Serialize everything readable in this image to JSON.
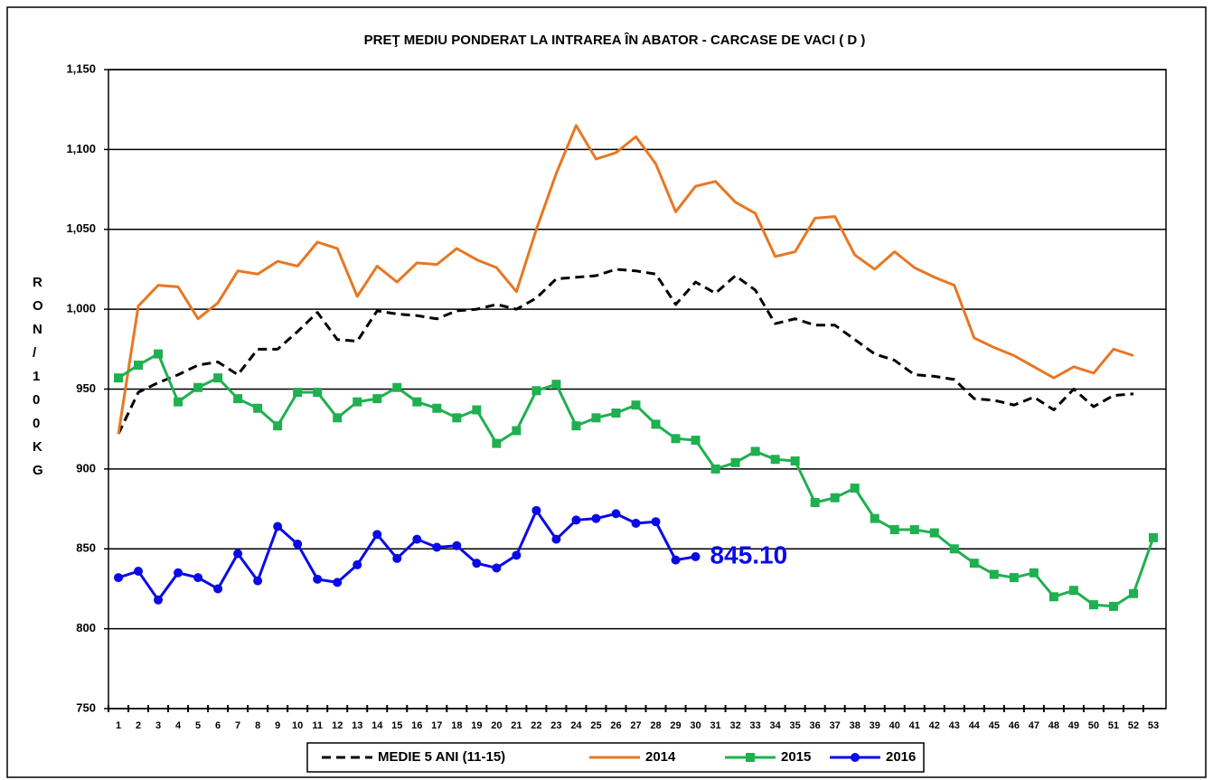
{
  "chart_data": {
    "type": "line",
    "title": "PREŢ MEDIU PONDERAT LA INTRAREA ÎN ABATOR - CARCASE DE VACI ( D )",
    "y_label": "RON / 100 KG",
    "categories": [
      1,
      2,
      3,
      4,
      5,
      6,
      7,
      8,
      9,
      10,
      11,
      12,
      13,
      14,
      15,
      16,
      17,
      18,
      19,
      20,
      21,
      22,
      23,
      24,
      25,
      26,
      27,
      28,
      29,
      30,
      31,
      32,
      33,
      34,
      35,
      36,
      37,
      38,
      39,
      40,
      41,
      42,
      43,
      44,
      45,
      46,
      47,
      48,
      49,
      50,
      51,
      52,
      53
    ],
    "ylim": [
      750,
      1150
    ],
    "yticks": [
      750,
      800,
      850,
      900,
      950,
      {
        "value": 1000,
        "label": "1,000"
      },
      {
        "value": 1050,
        "label": "1,050"
      },
      {
        "value": 1100,
        "label": "1,100"
      },
      {
        "value": 1150,
        "label": "1,150"
      }
    ],
    "grid": true,
    "legend": "bottom",
    "series": [
      {
        "name": "MEDIE 5 ANI (11-15)",
        "color": "#000000",
        "dash": true,
        "marker": "none",
        "values": [
          922,
          948,
          954,
          959,
          965,
          967,
          959,
          975,
          975,
          986,
          998,
          981,
          980,
          999,
          997,
          996,
          994,
          999,
          1000,
          1003,
          1000,
          1007,
          1019,
          1020,
          1021,
          1025,
          1024,
          1022,
          1003,
          1017,
          1010,
          1021,
          1012,
          991,
          994,
          990,
          990,
          981,
          972,
          968,
          959,
          958,
          956,
          944,
          943,
          940,
          945,
          937,
          950,
          939,
          946,
          947,
          null
        ]
      },
      {
        "name": "2014",
        "color": "#e87722",
        "dash": false,
        "marker": "none",
        "values": [
          922,
          1002,
          1015,
          1014,
          994,
          1004,
          1024,
          1022,
          1030,
          1027,
          1042,
          1038,
          1008,
          1027,
          1017,
          1029,
          1028,
          1038,
          1031,
          1026,
          1011,
          1050,
          1085,
          1115,
          1094,
          1098,
          1108,
          1091,
          1061,
          1077,
          1080,
          1067,
          1060,
          1033,
          1036,
          1057,
          1058,
          1034,
          1025,
          1036,
          1026,
          1020,
          1015,
          982,
          976,
          971,
          964,
          957,
          964,
          960,
          975,
          971,
          null
        ]
      },
      {
        "name": "2015",
        "color": "#1fb050",
        "dash": false,
        "marker": "square",
        "values": [
          957,
          965,
          972,
          942,
          951,
          957,
          944,
          938,
          927,
          948,
          948,
          932,
          942,
          944,
          951,
          942,
          938,
          932,
          937,
          916,
          924,
          949,
          953,
          927,
          932,
          935,
          940,
          928,
          919,
          918,
          900,
          904,
          911,
          906,
          905,
          879,
          882,
          888,
          869,
          862,
          862,
          860,
          850,
          841,
          834,
          832,
          835,
          820,
          824,
          815,
          814,
          822,
          857
        ]
      },
      {
        "name": "2016",
        "color": "#0a0ae8",
        "dash": false,
        "marker": "circle",
        "values": [
          832,
          836,
          818,
          835,
          832,
          825,
          847,
          830,
          864,
          853,
          831,
          829,
          840,
          859,
          844,
          856,
          851,
          852,
          841,
          838,
          846,
          874,
          856,
          868,
          869,
          872,
          866,
          867,
          843,
          845.1,
          null,
          null,
          null,
          null,
          null,
          null,
          null,
          null,
          null,
          null,
          null,
          null,
          null,
          null,
          null,
          null,
          null,
          null,
          null,
          null,
          null,
          null,
          null
        ],
        "value_labels": [
          null,
          null,
          null,
          null,
          null,
          null,
          null,
          null,
          null,
          null,
          null,
          null,
          null,
          null,
          null,
          null,
          null,
          null,
          null,
          null,
          null,
          null,
          null,
          null,
          null,
          null,
          null,
          null,
          null,
          "845.10",
          null,
          null,
          null,
          null,
          null,
          null,
          null,
          null,
          null,
          null,
          null,
          null,
          null,
          null,
          null,
          null,
          null,
          null,
          null,
          null,
          null,
          null,
          null
        ]
      }
    ]
  }
}
